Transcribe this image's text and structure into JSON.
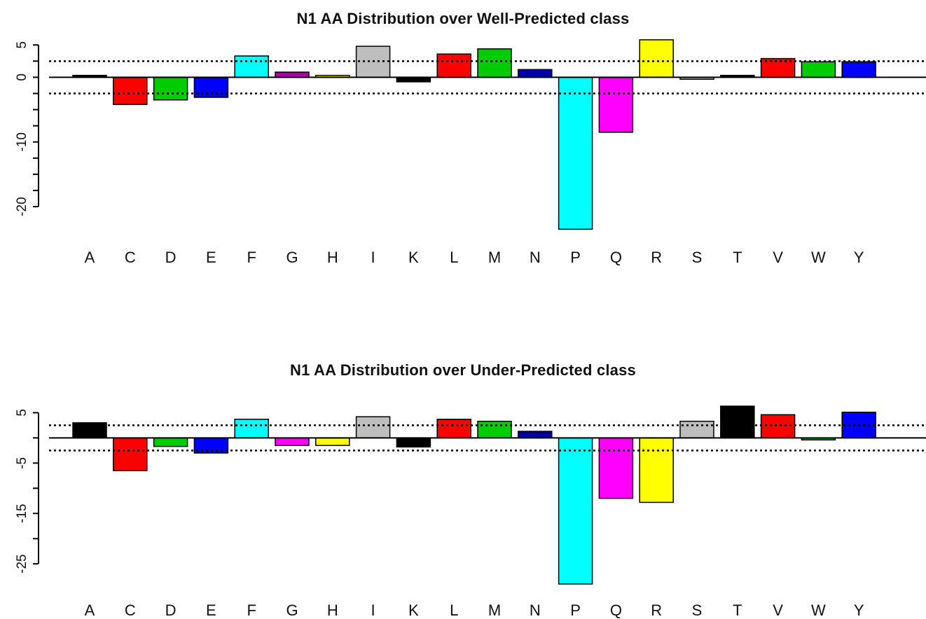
{
  "chart_data": [
    {
      "type": "bar",
      "title": "N1 AA Distribution over Well-Predicted class",
      "categories": [
        "A",
        "C",
        "D",
        "E",
        "F",
        "G",
        "H",
        "I",
        "K",
        "L",
        "M",
        "N",
        "P",
        "Q",
        "R",
        "S",
        "T",
        "V",
        "W",
        "Y"
      ],
      "values": [
        0.3,
        -4.2,
        -3.5,
        -3.1,
        3.3,
        0.8,
        0.3,
        4.8,
        -0.7,
        3.6,
        4.4,
        1.2,
        -23.5,
        -8.5,
        5.8,
        -0.3,
        0.3,
        2.9,
        2.4,
        2.4
      ],
      "colors": [
        "#000000",
        "#ff0000",
        "#00cc00",
        "#0000ff",
        "#00ffff",
        "#aa00aa",
        "#ffff00",
        "#bebebe",
        "#000000",
        "#ff0000",
        "#00cc00",
        "#0000aa",
        "#00ffff",
        "#ff00ff",
        "#ffff00",
        "#bebebe",
        "#000000",
        "#ff0000",
        "#00cc00",
        "#0000ff"
      ],
      "ylim": [
        -24,
        6
      ],
      "yticks": [
        5,
        0,
        -10,
        -20
      ],
      "ytick_labels": [
        "5",
        "0",
        "-10",
        "-20"
      ],
      "reference_lines": [
        2.5,
        -2.5
      ]
    },
    {
      "type": "bar",
      "title": "N1 AA Distribution over Under-Predicted class",
      "categories": [
        "A",
        "C",
        "D",
        "E",
        "F",
        "G",
        "H",
        "I",
        "K",
        "L",
        "M",
        "N",
        "P",
        "Q",
        "R",
        "S",
        "T",
        "V",
        "W",
        "Y"
      ],
      "values": [
        3.0,
        -6.5,
        -1.7,
        -3.0,
        3.7,
        -1.5,
        -1.5,
        4.2,
        -1.8,
        3.7,
        3.3,
        1.3,
        -29.0,
        -12.0,
        -12.8,
        3.3,
        6.3,
        4.6,
        -0.4,
        5.1
      ],
      "colors": [
        "#000000",
        "#ff0000",
        "#00cc00",
        "#0000ff",
        "#00ffff",
        "#ff00ff",
        "#ffff00",
        "#bebebe",
        "#000000",
        "#ff0000",
        "#00cc00",
        "#0000aa",
        "#00ffff",
        "#ff00ff",
        "#ffff00",
        "#bebebe",
        "#000000",
        "#ff0000",
        "#00cc00",
        "#0000ff"
      ],
      "ylim": [
        -29,
        7
      ],
      "yticks": [
        5,
        -5,
        -15,
        -25
      ],
      "ytick_labels": [
        "5",
        "-5",
        "-15",
        "-25"
      ],
      "reference_lines": [
        2.5,
        -2.5
      ]
    }
  ]
}
